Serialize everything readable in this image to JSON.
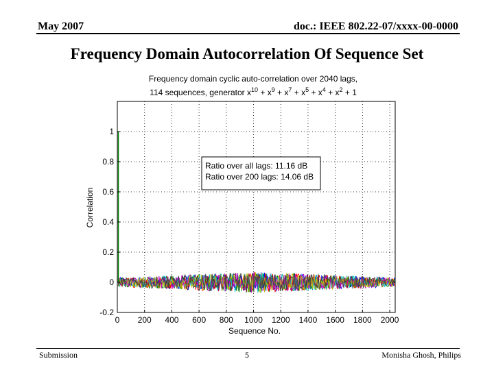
{
  "header": {
    "date": "May 2007",
    "doc": "doc.: IEEE 802.22-07/xxxx-00-0000"
  },
  "slide": {
    "title": "Frequency Domain Autocorrelation Of Sequence Set"
  },
  "footer": {
    "left": "Submission",
    "page": "5",
    "author": "Monisha Ghosh, Philips"
  },
  "chart_data": {
    "type": "line",
    "title_line1": "Frequency domain cyclic auto-correlation over 2040 lags,",
    "title_line2": "114 sequences, generator x",
    "generator_terms": [
      {
        "exp": "10",
        "tail": " + x"
      },
      {
        "exp": "9",
        "tail": " + x"
      },
      {
        "exp": "7",
        "tail": " + x"
      },
      {
        "exp": "5",
        "tail": " + x"
      },
      {
        "exp": "4",
        "tail": " + x"
      },
      {
        "exp": "2",
        "tail": " + 1"
      }
    ],
    "xlabel": "Sequence No.",
    "ylabel": "Correlation",
    "xlim": [
      0,
      2040
    ],
    "ylim": [
      -0.2,
      1.2
    ],
    "xticks": [
      0,
      200,
      400,
      600,
      800,
      1000,
      1200,
      1400,
      1600,
      1800,
      2000
    ],
    "yticks": [
      -0.2,
      0,
      0.2,
      0.4,
      0.6,
      0.8,
      1
    ],
    "ytick_labels": [
      "-0.2",
      "0",
      "0.2",
      "0.4",
      "0.6",
      "0.8",
      "1"
    ],
    "grid": true,
    "peak": {
      "x": 0,
      "y": 1
    },
    "noise_band": {
      "edge_amplitude": 0.03,
      "center_amplitude": 0.07
    },
    "series_colors": [
      "#0000ff",
      "#008000",
      "#ff0000",
      "#00bfbf",
      "#bf00bf",
      "#bfbf00",
      "#404040"
    ],
    "annotation": {
      "line1": "Ratio over all lags:   11.16 dB",
      "line2": "Ratio over 200 lags: 14.06 dB"
    }
  }
}
